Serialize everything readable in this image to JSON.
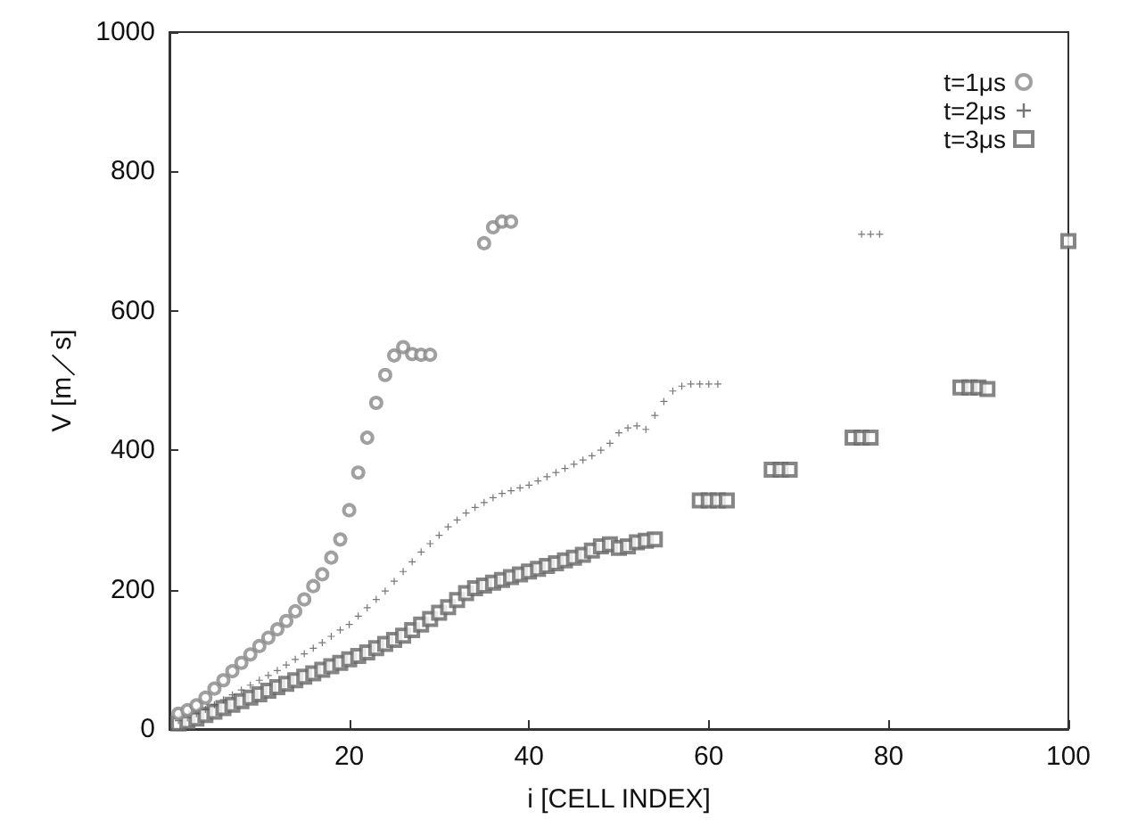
{
  "chart_data": {
    "type": "scatter",
    "xlabel": "i [CELL INDEX]",
    "ylabel": "V [m／s]",
    "xlim": [
      0,
      100
    ],
    "xticks": [
      20,
      40,
      60,
      80,
      100
    ],
    "ylim": [
      0,
      1000
    ],
    "yticks": [
      0,
      200,
      400,
      600,
      800,
      1000
    ],
    "grid": false,
    "legend": "top right",
    "series": [
      {
        "name": "t=1μs",
        "color": "#888888",
        "marker": "circle",
        "x": [
          1,
          2,
          3,
          4,
          5,
          6,
          7,
          8,
          9,
          10,
          11,
          12,
          13,
          14,
          15,
          16,
          17,
          18,
          19,
          20,
          21,
          22,
          23,
          24,
          25,
          26,
          27,
          28,
          29,
          35,
          36,
          37,
          38
        ],
        "values": [
          22,
          27,
          34,
          45,
          58,
          70,
          83,
          95,
          107,
          119,
          131,
          143,
          155,
          169,
          186,
          205,
          222,
          246,
          272,
          314,
          368,
          418,
          468,
          508,
          536,
          548,
          538,
          537,
          537,
          697,
          720,
          728,
          728
        ]
      },
      {
        "name": "t=2μs",
        "color": "#555555",
        "marker": "cross",
        "x": [
          1,
          2,
          3,
          4,
          5,
          6,
          7,
          8,
          9,
          10,
          11,
          12,
          13,
          14,
          15,
          16,
          17,
          18,
          19,
          20,
          21,
          22,
          23,
          24,
          25,
          26,
          27,
          28,
          29,
          30,
          31,
          32,
          33,
          34,
          35,
          36,
          37,
          38,
          39,
          40,
          41,
          42,
          43,
          44,
          45,
          46,
          47,
          48,
          49,
          50,
          51,
          52,
          53,
          54,
          55,
          56,
          57,
          58,
          59,
          60,
          61,
          77,
          78,
          79
        ],
        "values": [
          12,
          16,
          22,
          28,
          35,
          42,
          49,
          56,
          63,
          70,
          77,
          84,
          92,
          100,
          108,
          116,
          124,
          133,
          142,
          150,
          162,
          174,
          186,
          198,
          212,
          226,
          240,
          254,
          266,
          278,
          290,
          300,
          310,
          318,
          325,
          332,
          338,
          342,
          346,
          350,
          356,
          362,
          368,
          374,
          380,
          386,
          392,
          400,
          410,
          425,
          432,
          435,
          430,
          450,
          470,
          485,
          492,
          495,
          495,
          495,
          495,
          710,
          710,
          710
        ]
      },
      {
        "name": "t=3μs",
        "color": "#666666",
        "marker": "square",
        "x": [
          1,
          2,
          3,
          4,
          5,
          6,
          7,
          8,
          9,
          10,
          11,
          12,
          13,
          14,
          15,
          16,
          17,
          18,
          19,
          20,
          21,
          22,
          23,
          24,
          25,
          26,
          27,
          28,
          29,
          30,
          31,
          32,
          33,
          34,
          35,
          36,
          37,
          38,
          39,
          40,
          41,
          42,
          43,
          44,
          45,
          46,
          47,
          48,
          49,
          50,
          51,
          52,
          53,
          54,
          59,
          60,
          61,
          62,
          67,
          68,
          69,
          76,
          77,
          78,
          88,
          89,
          90,
          91,
          100
        ],
        "values": [
          8,
          11,
          15,
          20,
          25,
          30,
          35,
          40,
          45,
          50,
          55,
          60,
          65,
          70,
          75,
          80,
          85,
          90,
          95,
          100,
          105,
          110,
          116,
          122,
          128,
          134,
          142,
          150,
          158,
          167,
          175,
          185,
          195,
          202,
          206,
          210,
          214,
          218,
          222,
          226,
          230,
          234,
          238,
          242,
          246,
          250,
          256,
          262,
          265,
          260,
          262,
          268,
          270,
          272,
          328,
          328,
          328,
          328,
          372,
          372,
          372,
          418,
          418,
          418,
          490,
          490,
          490,
          488,
          700
        ]
      }
    ]
  }
}
